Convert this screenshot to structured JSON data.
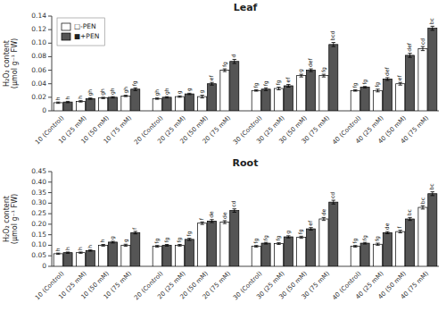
{
  "chart_data": [
    {
      "type": "bar",
      "title": "Leaf",
      "ylabel": "H₂O₂ content\n(µmol g⁻¹ FW)",
      "categories": [
        "10 (Control)",
        "10 (25 mM)",
        "10 (50 mM)",
        "10 (75 mM)",
        "20 (Control)",
        "20 (25 mM)",
        "20 (50 mM)",
        "20 (75 mM)",
        "30 (Control)",
        "30 (25 mM)",
        "30 (50 mM)",
        "30 (75 mM)",
        "40 (Control)",
        "40 (25 mM)",
        "40 (50 mM)",
        "40 (75 mM)"
      ],
      "series": [
        {
          "name": "□-PEN",
          "color": "#ffffff",
          "values": [
            0.012,
            0.014,
            0.019,
            0.022,
            0.018,
            0.021,
            0.021,
            0.06,
            0.03,
            0.033,
            0.052,
            0.052,
            0.03,
            0.03,
            0.04,
            0.092
          ],
          "errors": [
            0.001,
            0.001,
            0.001,
            0.001,
            0.001,
            0.001,
            0.002,
            0.002,
            0.001,
            0.002,
            0.002,
            0.002,
            0.001,
            0.002,
            0.002,
            0.003
          ],
          "annotations": [
            "h",
            "h",
            "gh",
            "gh",
            "gh",
            "g",
            "g",
            "fg",
            "fg",
            "fg",
            "g",
            "fg",
            "fg",
            "fg",
            "ef",
            "cd"
          ]
        },
        {
          "name": "■+PEN",
          "color": "#555555",
          "values": [
            0.013,
            0.018,
            0.02,
            0.032,
            0.02,
            0.025,
            0.04,
            0.073,
            0.032,
            0.037,
            0.06,
            0.098,
            0.035,
            0.047,
            0.082,
            0.122
          ],
          "errors": [
            0.001,
            0.001,
            0.001,
            0.002,
            0.001,
            0.001,
            0.002,
            0.003,
            0.002,
            0.002,
            0.002,
            0.003,
            0.001,
            0.002,
            0.003,
            0.003
          ],
          "annotations": [
            "h",
            "gh",
            "gh",
            "fg",
            "gh",
            "g",
            "ef",
            "d",
            "fg",
            "ef",
            "def",
            "bcd",
            "fg",
            "def",
            "def",
            "bc"
          ]
        }
      ],
      "ylim": [
        0,
        0.14
      ],
      "yticks": [
        0,
        0.02,
        0.04,
        0.06,
        0.08,
        {
          "value": 0.1,
          "label": "0.10"
        },
        0.12,
        0.14
      ],
      "legend": "upper left"
    },
    {
      "type": "bar",
      "title": "Root",
      "ylabel": "H₂O₂ content\n(µmol g⁻¹ FW)",
      "categories": [
        "10 (Control)",
        "10 (25 mM)",
        "10 (50 mM)",
        "10 (75 mM)",
        "20 (Control)",
        "20 (25 mM)",
        "20 (50 mM)",
        "20 (75 mM)",
        "30 (Control)",
        "30 (25 mM)",
        "30 (50 mM)",
        "30 (75 mM)",
        "40 (Control)",
        "40 (25 mM)",
        "40 (50 mM)",
        "40 (75 mM)"
      ],
      "series": [
        {
          "color": "#ffffff",
          "values": [
            0.06,
            0.065,
            0.1,
            0.1,
            0.095,
            0.1,
            0.205,
            0.21,
            0.095,
            0.108,
            0.138,
            0.225,
            0.095,
            0.105,
            0.165,
            0.28
          ],
          "errors": [
            0.003,
            0.003,
            0.004,
            0.005,
            0.004,
            0.004,
            0.006,
            0.007,
            0.004,
            0.004,
            0.005,
            0.007,
            0.004,
            0.005,
            0.006,
            0.008
          ],
          "annotations": [
            "h",
            "h",
            "h",
            "g",
            "fg",
            "fg",
            "f",
            "de",
            "fg",
            "fg",
            "fg",
            "de",
            "fg",
            "fg",
            "f",
            "bc"
          ]
        },
        {
          "color": "#555555",
          "values": [
            0.065,
            0.075,
            0.115,
            0.16,
            0.1,
            0.128,
            0.215,
            0.265,
            0.11,
            0.14,
            0.178,
            0.305,
            0.11,
            0.16,
            0.225,
            0.345
          ],
          "errors": [
            0.003,
            0.003,
            0.004,
            0.006,
            0.004,
            0.005,
            0.007,
            0.008,
            0.004,
            0.005,
            0.006,
            0.009,
            0.004,
            0.005,
            0.007,
            0.009
          ],
          "annotations": [
            "h",
            "h",
            "g",
            "f",
            "fg",
            "fg",
            "de",
            "cd",
            "fg",
            "g",
            "ef",
            "cd",
            "fg",
            "de",
            "bc",
            "bc"
          ]
        }
      ],
      "ylim": [
        0,
        0.45
      ],
      "yticks": [
        0,
        0.05,
        {
          "value": 0.1,
          "label": "0.10"
        },
        0.15,
        {
          "value": 0.2,
          "label": "0.20"
        },
        0.25,
        {
          "value": 0.3,
          "label": "0.30"
        },
        0.35,
        {
          "value": 0.4,
          "label": "0.40"
        },
        0.45
      ]
    }
  ]
}
